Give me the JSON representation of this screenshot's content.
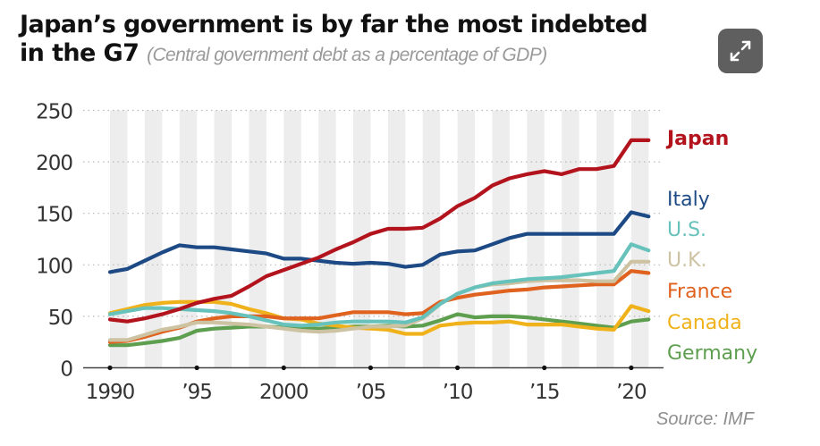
{
  "header": {
    "title_line1": "Japan’s government is by far the most indebted",
    "title_line2": "in the G7",
    "subtitle": "(Central government debt as a percentage of GDP)"
  },
  "controls": {
    "expand_icon": "expand-arrows-icon"
  },
  "source": "Source: IMF",
  "chart_data": {
    "type": "line",
    "title": "Japan’s government is by far the most indebted in the G7",
    "subtitle": "(Central government debt as a percentage of GDP)",
    "xlabel": "",
    "ylabel": "",
    "x": [
      1990,
      1991,
      1992,
      1993,
      1994,
      1995,
      1996,
      1997,
      1998,
      1999,
      2000,
      2001,
      2002,
      2003,
      2004,
      2005,
      2006,
      2007,
      2008,
      2009,
      2010,
      2011,
      2012,
      2013,
      2014,
      2015,
      2016,
      2017,
      2018,
      2019,
      2020,
      2021
    ],
    "xlim": [
      1990,
      2021
    ],
    "ylim": [
      0,
      250
    ],
    "x_ticks": [
      1990,
      1995,
      2000,
      2005,
      2010,
      2015,
      2020
    ],
    "x_tick_labels": [
      "1990",
      "’95",
      "2000",
      "’05",
      "’10",
      "’15",
      "’20"
    ],
    "y_ticks": [
      0,
      50,
      100,
      150,
      200,
      250
    ],
    "y_tick_labels": [
      "0",
      "50",
      "100",
      "150",
      "200",
      "250"
    ],
    "grid": "horizontal dotted",
    "stripes": "alternating gray year bands",
    "legend": "right",
    "source": "Source: IMF",
    "series": [
      {
        "name": "Japan",
        "color": "#b3131c",
        "bold": true,
        "values": [
          47,
          45,
          48,
          52,
          57,
          63,
          67,
          70,
          79,
          89,
          95,
          101,
          107,
          115,
          122,
          130,
          135,
          135,
          136,
          145,
          157,
          165,
          177,
          184,
          188,
          191,
          188,
          193,
          193,
          196,
          221,
          221
        ]
      },
      {
        "name": "Italy",
        "color": "#1d4a85",
        "bold": false,
        "values": [
          93,
          96,
          104,
          112,
          119,
          117,
          117,
          115,
          113,
          111,
          106,
          106,
          104,
          102,
          101,
          102,
          101,
          98,
          100,
          110,
          113,
          114,
          120,
          126,
          130,
          130,
          130,
          130,
          130,
          130,
          151,
          147
        ]
      },
      {
        "name": "U.S.",
        "color": "#67c2bb",
        "bold": false,
        "values": [
          52,
          55,
          58,
          58,
          57,
          56,
          55,
          53,
          50,
          46,
          42,
          41,
          42,
          44,
          45,
          45,
          45,
          44,
          49,
          62,
          72,
          78,
          82,
          84,
          86,
          87,
          88,
          90,
          92,
          94,
          120,
          114
        ]
      },
      {
        "name": "U.K.",
        "color": "#cdc3a3",
        "bold": false,
        "values": [
          27,
          27,
          32,
          37,
          40,
          44,
          44,
          43,
          42,
          40,
          38,
          36,
          35,
          36,
          38,
          40,
          40,
          41,
          48,
          62,
          72,
          78,
          81,
          82,
          84,
          85,
          85,
          85,
          84,
          84,
          103,
          103
        ]
      },
      {
        "name": "France",
        "color": "#e0621f",
        "bold": false,
        "values": [
          25,
          26,
          30,
          35,
          39,
          45,
          48,
          50,
          50,
          50,
          48,
          48,
          48,
          51,
          54,
          54,
          54,
          52,
          53,
          64,
          68,
          71,
          73,
          75,
          76,
          78,
          79,
          80,
          81,
          81,
          94,
          92
        ]
      },
      {
        "name": "Canada",
        "color": "#f0b21b",
        "bold": false,
        "values": [
          53,
          57,
          61,
          63,
          64,
          64,
          64,
          62,
          57,
          53,
          48,
          47,
          43,
          41,
          39,
          38,
          37,
          33,
          33,
          41,
          43,
          44,
          44,
          45,
          42,
          42,
          42,
          40,
          38,
          37,
          60,
          55
        ]
      },
      {
        "name": "Germany",
        "color": "#5e9e4f",
        "bold": false,
        "values": [
          22,
          22,
          24,
          26,
          29,
          36,
          38,
          39,
          40,
          40,
          39,
          38,
          38,
          39,
          40,
          40,
          41,
          40,
          41,
          46,
          52,
          49,
          50,
          50,
          49,
          47,
          45,
          43,
          41,
          39,
          45,
          47
        ]
      }
    ]
  }
}
